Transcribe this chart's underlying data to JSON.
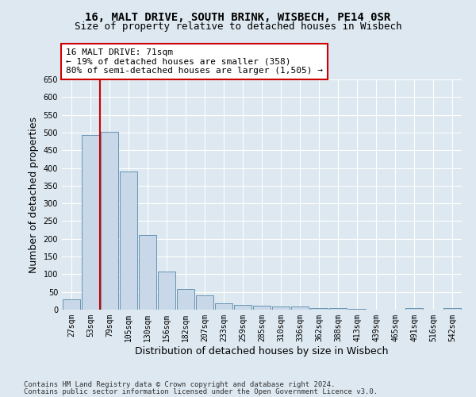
{
  "title_line1": "16, MALT DRIVE, SOUTH BRINK, WISBECH, PE14 0SR",
  "title_line2": "Size of property relative to detached houses in Wisbech",
  "xlabel": "Distribution of detached houses by size in Wisbech",
  "ylabel": "Number of detached properties",
  "footer_line1": "Contains HM Land Registry data © Crown copyright and database right 2024.",
  "footer_line2": "Contains public sector information licensed under the Open Government Licence v3.0.",
  "categories": [
    "27sqm",
    "53sqm",
    "79sqm",
    "105sqm",
    "130sqm",
    "156sqm",
    "182sqm",
    "207sqm",
    "233sqm",
    "259sqm",
    "285sqm",
    "310sqm",
    "336sqm",
    "362sqm",
    "388sqm",
    "413sqm",
    "439sqm",
    "465sqm",
    "491sqm",
    "516sqm",
    "542sqm"
  ],
  "values": [
    30,
    492,
    503,
    390,
    210,
    107,
    58,
    40,
    17,
    14,
    11,
    10,
    9,
    5,
    4,
    2,
    1,
    1,
    4,
    1,
    5
  ],
  "bar_color": "#c8d8e8",
  "bar_edge_color": "#5588aa",
  "annotation_text": "16 MALT DRIVE: 71sqm\n← 19% of detached houses are smaller (358)\n80% of semi-detached houses are larger (1,505) →",
  "annotation_box_facecolor": "#ffffff",
  "annotation_box_edgecolor": "#cc0000",
  "red_line_x": 1.5,
  "ylim": [
    0,
    650
  ],
  "yticks": [
    0,
    50,
    100,
    150,
    200,
    250,
    300,
    350,
    400,
    450,
    500,
    550,
    600,
    650
  ],
  "background_color": "#dde8f0",
  "plot_background_color": "#dde8f0",
  "grid_color": "#ffffff",
  "title_fontsize": 10,
  "subtitle_fontsize": 9,
  "tick_fontsize": 7,
  "ylabel_fontsize": 9,
  "xlabel_fontsize": 9,
  "footer_fontsize": 6.5,
  "annotation_fontsize": 8
}
